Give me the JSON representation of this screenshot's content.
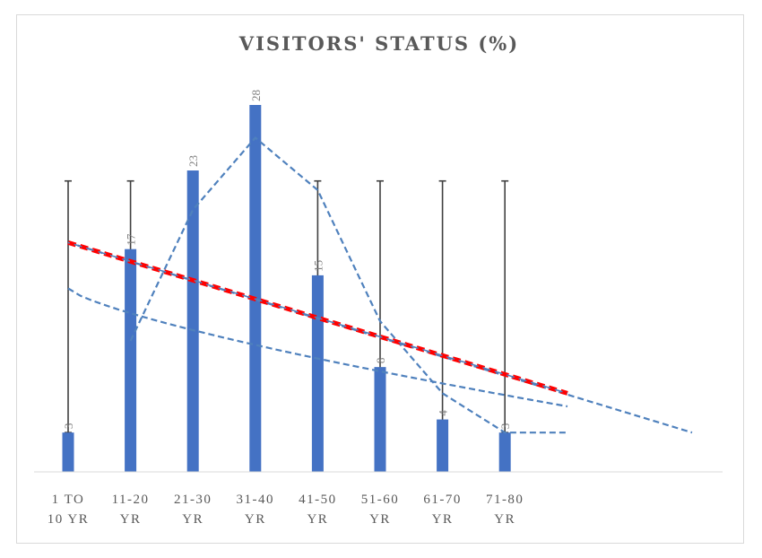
{
  "chart_data": {
    "type": "bar",
    "title": "VISITORS' STATUS (%)",
    "categories": [
      [
        "1 TO",
        "10 YR"
      ],
      [
        "11-20",
        "YR"
      ],
      [
        "21-30",
        "YR"
      ],
      [
        "31-40",
        "YR"
      ],
      [
        "41-50",
        "YR"
      ],
      [
        "51-60",
        "YR"
      ],
      [
        "61-70",
        "YR"
      ],
      [
        "71-80",
        "YR"
      ]
    ],
    "series": [
      {
        "values": [
          3,
          17,
          23,
          28,
          15,
          8,
          4,
          3
        ],
        "color": "#4472c4"
      }
    ],
    "data_labels": [
      "3",
      "17",
      "23",
      "28",
      "15",
      "8",
      "4",
      "3"
    ],
    "ylim": [
      0,
      28
    ],
    "error_bars": {
      "upper": 22.2,
      "lower": 3,
      "color": "#404040"
    },
    "moving_average_line": [
      null,
      10,
      20,
      25.5,
      21.5,
      11.5,
      6,
      3
    ],
    "linear_trend": {
      "start": 17.5,
      "end": 6,
      "color": "#ff0000",
      "style": "dashed"
    },
    "log_trend": {
      "start": 14,
      "end": 5
    },
    "extended_trend": {
      "start": 17.5,
      "end": 3
    },
    "grid": false,
    "legend": "none"
  }
}
